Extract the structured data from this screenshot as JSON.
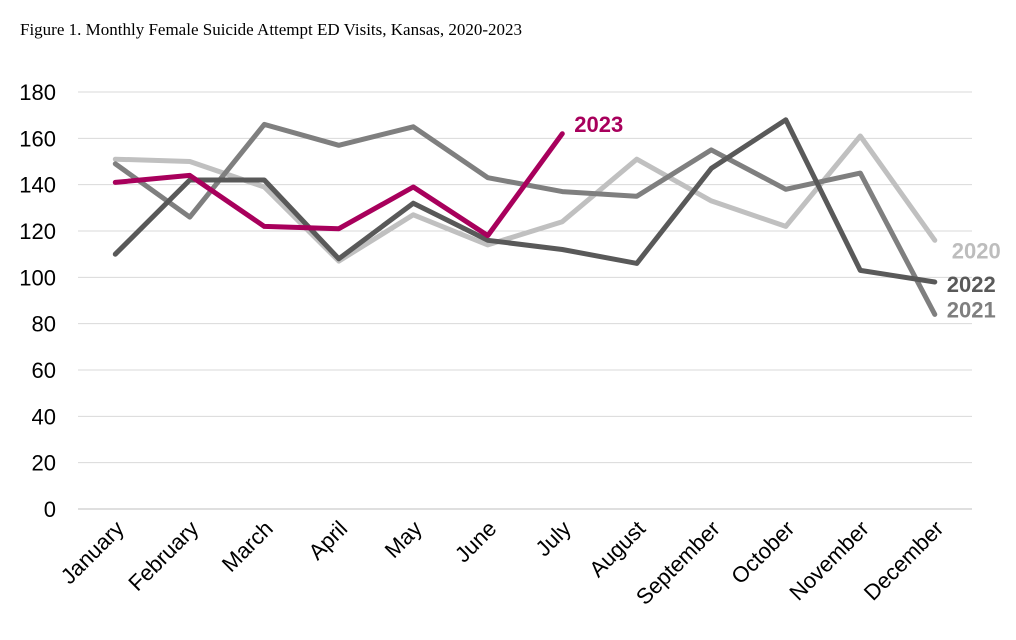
{
  "chart_data": {
    "type": "line",
    "title": "Figure 1. Monthly Female Suicide Attempt ED Visits, Kansas, 2020-2023",
    "xlabel": "",
    "ylabel": "",
    "ylim": [
      0,
      180
    ],
    "yticks": [
      "0",
      "20",
      "40",
      "60",
      "80",
      "100",
      "120",
      "140",
      "160",
      "180"
    ],
    "grid": true,
    "categories": [
      "January",
      "February",
      "March",
      "April",
      "May",
      "June",
      "July",
      "August",
      "September",
      "October",
      "November",
      "December"
    ],
    "series": [
      {
        "name": "2020",
        "color": "#c0c0c0",
        "label_color": "#bdbdbd",
        "values": [
          151,
          150,
          139,
          107,
          127,
          114,
          124,
          151,
          133,
          122,
          161,
          116
        ]
      },
      {
        "name": "2021",
        "color": "#7f7f7f",
        "label_color": "#7f7f7f",
        "values": [
          149,
          126,
          166,
          157,
          165,
          143,
          137,
          135,
          155,
          138,
          145,
          84
        ]
      },
      {
        "name": "2022",
        "color": "#595959",
        "label_color": "#595959",
        "values": [
          110,
          142,
          142,
          108,
          132,
          116,
          112,
          106,
          147,
          168,
          103,
          98
        ]
      },
      {
        "name": "2023",
        "color": "#a8005c",
        "label_color": "#a8005c",
        "values": [
          141,
          144,
          122,
          121,
          139,
          118,
          162,
          null,
          null,
          null,
          null,
          null
        ]
      }
    ]
  }
}
